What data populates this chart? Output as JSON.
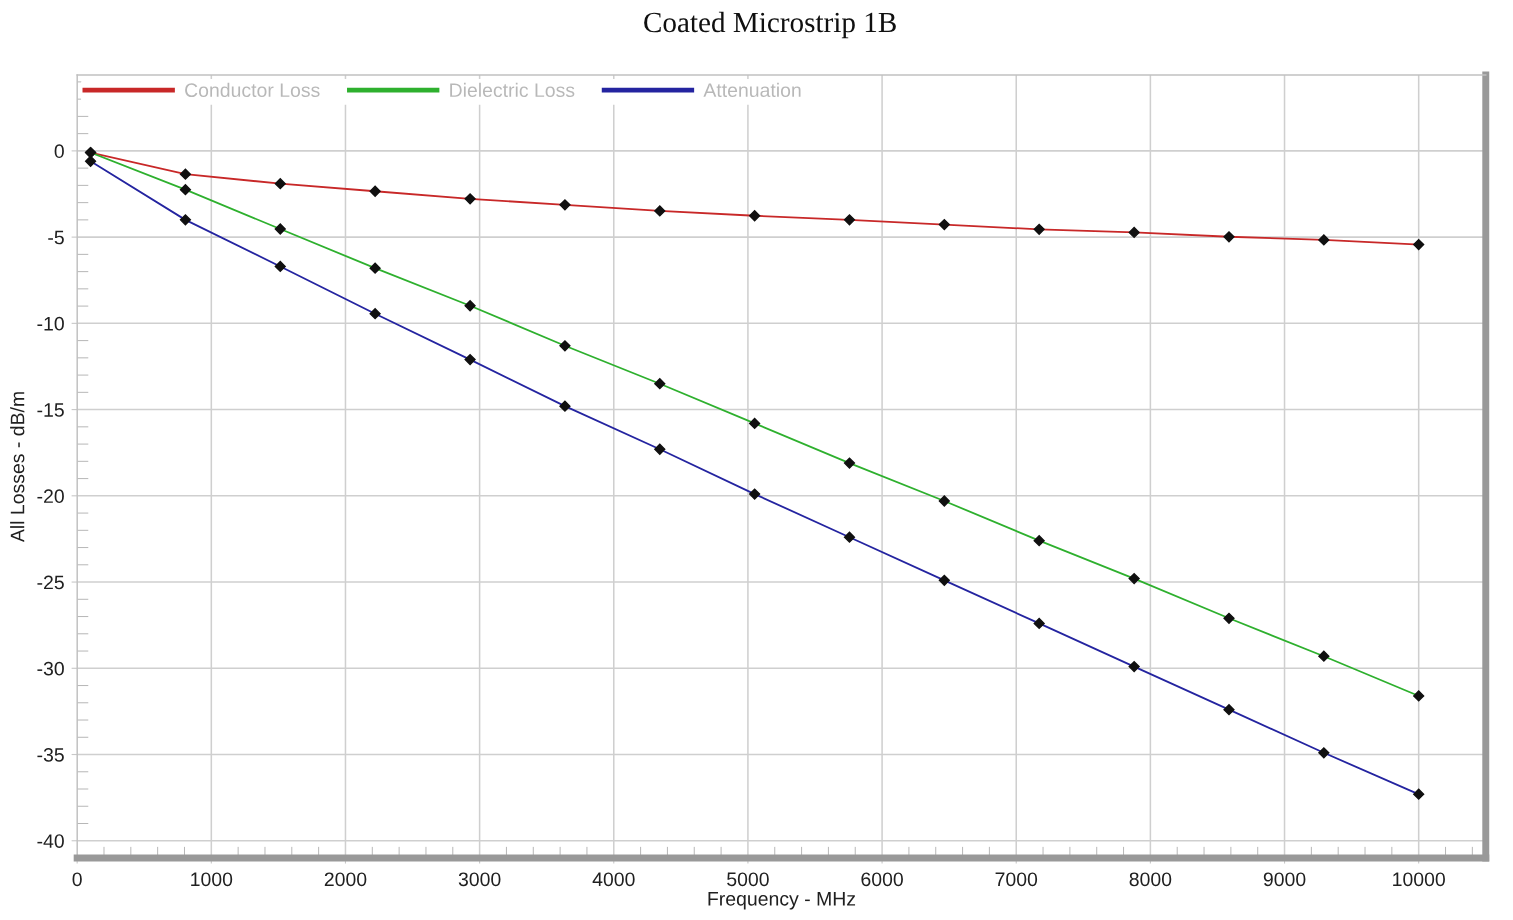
{
  "chart_data": {
    "type": "line",
    "title": "Coated Microstrip 1B",
    "xlabel": "Frequency - MHz",
    "ylabel": "All Losses - dB/m",
    "x": [
      100,
      807,
      1514,
      2221,
      2929,
      3636,
      4343,
      5050,
      5757,
      6464,
      7171,
      7879,
      8586,
      9293,
      10000
    ],
    "series": [
      {
        "name": "Conductor Loss",
        "color": "#c82828",
        "values": [
          -0.1,
          -1.35,
          -1.9,
          -2.34,
          -2.78,
          -3.13,
          -3.48,
          -3.76,
          -4.0,
          -4.27,
          -4.55,
          -4.73,
          -4.98,
          -5.16,
          -5.43
        ]
      },
      {
        "name": "Dielectric Loss",
        "color": "#2eb02e",
        "values": [
          -0.1,
          -2.25,
          -4.53,
          -6.8,
          -8.98,
          -11.3,
          -13.5,
          -15.8,
          -18.1,
          -20.3,
          -22.6,
          -24.8,
          -27.1,
          -29.3,
          -31.6
        ]
      },
      {
        "name": "Attenuation",
        "color": "#2424a0",
        "values": [
          -0.6,
          -4.0,
          -6.7,
          -9.44,
          -12.1,
          -14.8,
          -17.3,
          -19.9,
          -22.4,
          -24.9,
          -27.4,
          -29.9,
          -32.4,
          -34.9,
          -37.3
        ]
      }
    ],
    "xlim": [
      0,
      10500
    ],
    "ylim": [
      -41,
      4.4
    ],
    "xticks": [
      0,
      1000,
      2000,
      3000,
      4000,
      5000,
      6000,
      7000,
      8000,
      9000,
      10000
    ],
    "yticks": [
      -40,
      -35,
      -30,
      -25,
      -20,
      -15,
      -10,
      -5,
      0
    ],
    "grid": true,
    "legend": "top left",
    "marker": "diamond",
    "line_style": "solid"
  }
}
